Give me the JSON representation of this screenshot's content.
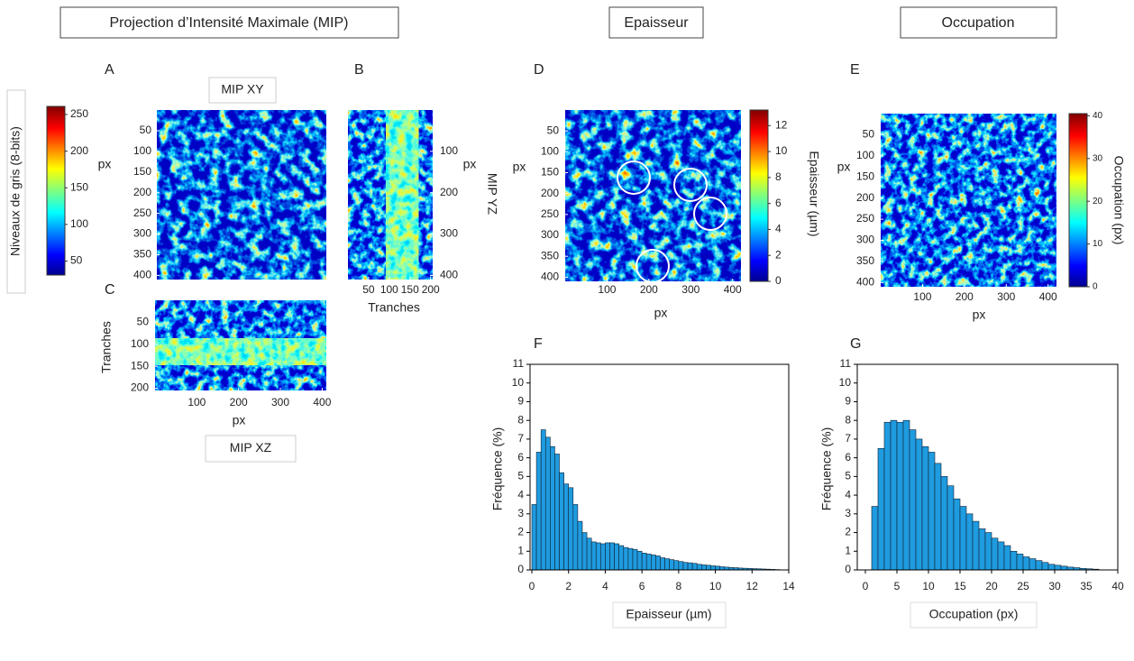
{
  "headers": [
    "Projection d’Intensité Maximale (MIP)",
    "Epaisseur",
    "Occupation"
  ],
  "panel_labels": [
    "A",
    "B",
    "C",
    "D",
    "E",
    "F",
    "G"
  ],
  "chart_data": [
    {
      "type": "image",
      "title": "MIP XY",
      "ylabel": "px",
      "yticks": [
        50,
        100,
        150,
        200,
        250,
        300,
        350,
        400
      ],
      "ylim": [
        0,
        410
      ],
      "colorbar": {
        "label": "Niveaux de gris (8-bits)",
        "ticks": [
          50,
          100,
          150,
          200,
          250
        ],
        "lim": [
          31,
          261
        ]
      }
    },
    {
      "type": "image",
      "title": "MIP YZ",
      "ylabel": "px",
      "xlabel": "Tranches",
      "xticks": [
        50,
        100,
        150,
        200
      ],
      "xlim": [
        0,
        205
      ],
      "yticks": [
        100,
        200,
        300,
        400
      ],
      "ylim": [
        0,
        410
      ]
    },
    {
      "type": "image",
      "title": "MIP XZ",
      "ylabel": "Tranches",
      "xlabel": "px",
      "xticks": [
        100,
        200,
        300,
        400
      ],
      "xlim": [
        0,
        410
      ],
      "yticks": [
        50,
        100,
        150,
        200
      ],
      "ylim": [
        0,
        205
      ]
    },
    {
      "type": "image",
      "ylabel": "px",
      "xlabel": "px",
      "xticks": [
        100,
        200,
        300,
        400
      ],
      "xlim": [
        0,
        420
      ],
      "yticks": [
        50,
        100,
        150,
        200,
        250,
        300,
        350,
        400
      ],
      "ylim": [
        0,
        410
      ],
      "colorbar": {
        "label": "Epaisseur (µm)",
        "ticks": [
          0,
          2,
          4,
          6,
          8,
          10,
          12
        ],
        "lim": [
          0,
          13.2
        ]
      }
    },
    {
      "type": "image",
      "ylabel": "px",
      "xlabel": "px",
      "xticks": [
        100,
        200,
        300,
        400
      ],
      "xlim": [
        0,
        420
      ],
      "yticks": [
        50,
        100,
        150,
        200,
        250,
        300,
        350,
        400
      ],
      "ylim": [
        0,
        410
      ],
      "colorbar": {
        "label": "Occupation (px)",
        "ticks": [
          0,
          10,
          20,
          30,
          40
        ],
        "lim": [
          0,
          40.5
        ]
      }
    },
    {
      "type": "histogram",
      "xlabel": "Epaisseur (µm)",
      "ylabel": "Fréquence (%)",
      "color": "#1f9be0",
      "bins": [
        0,
        0.25,
        0.5,
        0.75,
        1,
        1.25,
        1.5,
        1.75,
        2,
        2.25,
        2.5,
        2.75,
        3,
        3.25,
        3.5,
        3.75,
        4,
        4.25,
        4.5,
        4.75,
        5,
        5.25,
        5.5,
        5.75,
        6,
        6.25,
        6.5,
        6.75,
        7,
        7.25,
        7.5,
        7.75,
        8,
        8.25,
        8.5,
        8.75,
        9,
        9.25,
        9.5,
        9.75,
        10,
        10.25,
        10.5,
        10.75,
        11,
        11.25,
        11.5,
        11.75,
        12,
        12.25,
        12.5,
        12.75,
        13,
        13.25,
        13.5
      ],
      "values": [
        3.5,
        6.3,
        7.5,
        7.1,
        6.6,
        6.2,
        5.2,
        4.6,
        4.4,
        3.5,
        2.6,
        2.0,
        1.7,
        1.5,
        1.45,
        1.4,
        1.45,
        1.45,
        1.4,
        1.3,
        1.2,
        1.15,
        1.1,
        1.0,
        0.9,
        0.85,
        0.8,
        0.75,
        0.65,
        0.6,
        0.55,
        0.5,
        0.45,
        0.4,
        0.38,
        0.35,
        0.3,
        0.27,
        0.25,
        0.22,
        0.2,
        0.17,
        0.15,
        0.13,
        0.12,
        0.1,
        0.09,
        0.08,
        0.07,
        0.06,
        0.05,
        0.04,
        0.03,
        0.02
      ],
      "xlim": [
        0,
        14
      ],
      "xticks": [
        0,
        2,
        4,
        6,
        8,
        10,
        12,
        14
      ],
      "ylim": [
        0,
        11
      ],
      "yticks": [
        0,
        1,
        2,
        3,
        4,
        5,
        6,
        7,
        8,
        9,
        10,
        11
      ]
    },
    {
      "type": "histogram",
      "xlabel": "Occupation (px)",
      "ylabel": "Fréquence (%)",
      "color": "#1f9be0",
      "bins": [
        1,
        2,
        3,
        4,
        5,
        6,
        7,
        8,
        9,
        10,
        11,
        12,
        13,
        14,
        15,
        16,
        17,
        18,
        19,
        20,
        21,
        22,
        23,
        24,
        25,
        26,
        27,
        28,
        29,
        30,
        31,
        32,
        33,
        34,
        35,
        36,
        37
      ],
      "values": [
        3.4,
        6.5,
        7.9,
        8.0,
        7.9,
        8.0,
        7.5,
        7.0,
        6.6,
        6.3,
        5.7,
        5.0,
        4.5,
        3.8,
        3.4,
        3.0,
        2.6,
        2.2,
        2.0,
        1.7,
        1.5,
        1.3,
        1.0,
        0.85,
        0.7,
        0.6,
        0.5,
        0.4,
        0.3,
        0.25,
        0.2,
        0.15,
        0.12,
        0.08,
        0.06,
        0.04
      ],
      "xlim": [
        -1,
        40
      ],
      "xticks": [
        0,
        5,
        10,
        15,
        20,
        25,
        30,
        35,
        40
      ],
      "ylim": [
        0,
        11
      ],
      "yticks": [
        0,
        1,
        2,
        3,
        4,
        5,
        6,
        7,
        8,
        9,
        10,
        11
      ]
    }
  ]
}
